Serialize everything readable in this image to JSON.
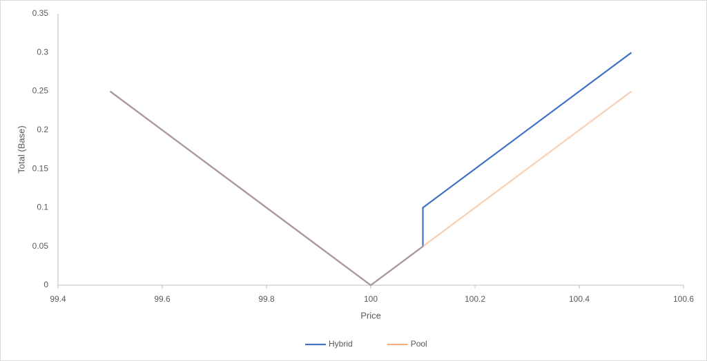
{
  "chart_data": {
    "type": "line",
    "x_label": "Price",
    "y_label": "Total (Base)",
    "xlim": [
      99.4,
      100.6
    ],
    "xticks": [
      99.4,
      99.6,
      99.8,
      100,
      100.2,
      100.4,
      100.6
    ],
    "ylim": [
      0,
      0.35
    ],
    "yticks": [
      0,
      0.05,
      0.1,
      0.15,
      0.2,
      0.25,
      0.3,
      0.35
    ],
    "legend": "bottom",
    "series": [
      {
        "name": "Hybrid",
        "color": "#4472c4",
        "x": [
          99.5,
          100,
          100.1,
          100.1,
          100.5
        ],
        "values": [
          0.25,
          0,
          0.05,
          0.1,
          0.3
        ]
      },
      {
        "name": "Pool",
        "color": "#f4b183",
        "x": [
          99.5,
          100,
          100.1,
          100.5
        ],
        "values": [
          0.25,
          0,
          0.05,
          0.25
        ]
      }
    ]
  }
}
